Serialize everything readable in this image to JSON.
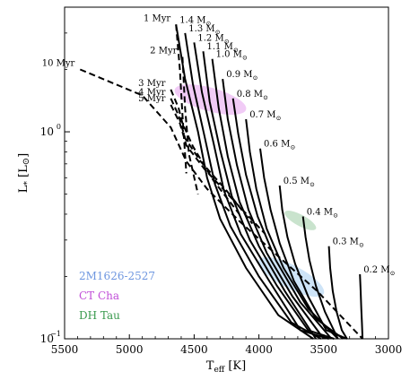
{
  "chart_data": {
    "type": "line",
    "xlabel": "T_eff [K]",
    "xlabel_main": "T",
    "xlabel_sub": "eff",
    "xlabel_unit": " [K]",
    "ylabel": "L_* [L_sun]",
    "ylabel_main": "L",
    "ylabel_sub": "*",
    "ylabel_unit": " [L",
    "ylabel_close": "]",
    "xlim": [
      5500,
      3000
    ],
    "ylim": [
      0.1,
      4.0
    ],
    "yscale": "log",
    "x_ticks": [
      5500,
      5000,
      4500,
      4000,
      3500,
      3000
    ],
    "x_tick_labels": [
      "5500",
      "5000",
      "4500",
      "4000",
      "3500",
      "3000"
    ],
    "y_major_ticks": [
      0.1,
      1
    ],
    "y_tick_labels": [
      "10",
      "10"
    ],
    "y_tick_exponents": [
      "−1",
      "0"
    ],
    "grid": false,
    "isochrones": [
      {
        "name": "1 Myr",
        "points": [
          [
            4640,
            3.3
          ],
          [
            4610,
            2.0
          ],
          [
            4590,
            1.2
          ],
          [
            4560,
            0.63
          ]
        ]
      },
      {
        "name": "2 Myr",
        "points": [
          [
            4590,
            2.3
          ],
          [
            4570,
            1.3
          ],
          [
            4540,
            0.78
          ],
          [
            4470,
            0.5
          ]
        ]
      },
      {
        "name": "3 Myr",
        "points": [
          [
            4680,
            1.6
          ],
          [
            4620,
            1.3
          ],
          [
            4590,
            1.1
          ],
          [
            4510,
            0.85
          ],
          [
            4350,
            0.58
          ],
          [
            4150,
            0.4
          ]
        ]
      },
      {
        "name": "4 Myr",
        "points": [
          [
            4680,
            1.45
          ],
          [
            4620,
            1.2
          ],
          [
            4570,
            0.93
          ],
          [
            4450,
            0.72
          ],
          [
            4250,
            0.52
          ],
          [
            4050,
            0.36
          ]
        ]
      },
      {
        "name": "5 Myr",
        "points": [
          [
            4680,
            1.35
          ],
          [
            4610,
            1.1
          ],
          [
            4560,
            0.86
          ],
          [
            4420,
            0.66
          ],
          [
            4200,
            0.47
          ],
          [
            3950,
            0.32
          ]
        ]
      },
      {
        "name": "10 Myr",
        "points": [
          [
            5380,
            2.0
          ],
          [
            4900,
            1.5
          ],
          [
            4680,
            1.05
          ],
          [
            4560,
            0.72
          ],
          [
            4400,
            0.53
          ],
          [
            4150,
            0.37
          ],
          [
            3850,
            0.25
          ],
          [
            3550,
            0.17
          ],
          [
            3200,
            0.1
          ]
        ]
      }
    ],
    "tracks": [
      {
        "mass": "1.4 M",
        "points": [
          [
            4640,
            3.3
          ],
          [
            4570,
            1.8
          ],
          [
            4470,
            1.0
          ],
          [
            4400,
            0.6
          ],
          [
            4300,
            0.38
          ],
          [
            4100,
            0.22
          ],
          [
            3850,
            0.13
          ],
          [
            3580,
            0.1
          ]
        ]
      },
      {
        "mass": "1.3 M",
        "points": [
          [
            4570,
            3.0
          ],
          [
            4510,
            1.7
          ],
          [
            4420,
            0.95
          ],
          [
            4340,
            0.56
          ],
          [
            4220,
            0.35
          ],
          [
            4000,
            0.2
          ],
          [
            3750,
            0.12
          ],
          [
            3520,
            0.1
          ]
        ]
      },
      {
        "mass": "1.2 M",
        "points": [
          [
            4500,
            2.7
          ],
          [
            4440,
            1.55
          ],
          [
            4350,
            0.88
          ],
          [
            4270,
            0.52
          ],
          [
            4140,
            0.32
          ],
          [
            3920,
            0.19
          ],
          [
            3680,
            0.11
          ],
          [
            3460,
            0.1
          ]
        ]
      },
      {
        "mass": "1.1 M",
        "points": [
          [
            4430,
            2.45
          ],
          [
            4380,
            1.4
          ],
          [
            4300,
            0.82
          ],
          [
            4210,
            0.49
          ],
          [
            4070,
            0.3
          ],
          [
            3860,
            0.18
          ],
          [
            3620,
            0.11
          ],
          [
            3420,
            0.1
          ]
        ]
      },
      {
        "mass": "1.0 M",
        "points": [
          [
            4360,
            2.25
          ],
          [
            4310,
            1.3
          ],
          [
            4240,
            0.76
          ],
          [
            4150,
            0.46
          ],
          [
            4000,
            0.28
          ],
          [
            3800,
            0.17
          ],
          [
            3560,
            0.1
          ]
        ]
      },
      {
        "mass": "0.9 M",
        "points": [
          [
            4280,
            1.8
          ],
          [
            4240,
            1.15
          ],
          [
            4170,
            0.69
          ],
          [
            4080,
            0.42
          ],
          [
            3940,
            0.26
          ],
          [
            3740,
            0.16
          ],
          [
            3500,
            0.1
          ]
        ]
      },
      {
        "mass": "0.8 M",
        "points": [
          [
            4200,
            1.45
          ],
          [
            4160,
            0.98
          ],
          [
            4100,
            0.62
          ],
          [
            4010,
            0.39
          ],
          [
            3870,
            0.24
          ],
          [
            3680,
            0.15
          ],
          [
            3440,
            0.1
          ]
        ]
      },
      {
        "mass": "0.7 M",
        "points": [
          [
            4100,
            1.15
          ],
          [
            4070,
            0.8
          ],
          [
            4020,
            0.53
          ],
          [
            3940,
            0.34
          ],
          [
            3810,
            0.22
          ],
          [
            3620,
            0.14
          ],
          [
            3390,
            0.1
          ]
        ]
      },
      {
        "mass": "0.6 M",
        "points": [
          [
            3990,
            0.83
          ],
          [
            3960,
            0.6
          ],
          [
            3910,
            0.42
          ],
          [
            3840,
            0.29
          ],
          [
            3730,
            0.19
          ],
          [
            3560,
            0.125
          ],
          [
            3350,
            0.1
          ]
        ]
      },
      {
        "mass": "0.5 M",
        "points": [
          [
            3840,
            0.55
          ],
          [
            3820,
            0.42
          ],
          [
            3780,
            0.31
          ],
          [
            3720,
            0.23
          ],
          [
            3620,
            0.16
          ],
          [
            3480,
            0.11
          ],
          [
            3320,
            0.1
          ]
        ]
      },
      {
        "mass": "0.4 M",
        "points": [
          [
            3660,
            0.39
          ],
          [
            3640,
            0.31
          ],
          [
            3610,
            0.24
          ],
          [
            3560,
            0.18
          ],
          [
            3490,
            0.135
          ],
          [
            3390,
            0.1
          ]
        ]
      },
      {
        "mass": "0.3 M",
        "points": [
          [
            3460,
            0.28
          ],
          [
            3450,
            0.22
          ],
          [
            3430,
            0.17
          ],
          [
            3400,
            0.135
          ],
          [
            3360,
            0.11
          ],
          [
            3320,
            0.1
          ]
        ]
      },
      {
        "mass": "0.2 M",
        "points": [
          [
            3220,
            0.205
          ],
          [
            3215,
            0.17
          ],
          [
            3210,
            0.14
          ],
          [
            3205,
            0.12
          ],
          [
            3200,
            0.1
          ]
        ]
      }
    ],
    "track_label_suffix": "⊙",
    "objects": [
      {
        "name": "2M1626-2527",
        "color": "#6f97e0",
        "fill": "#a6cdf0",
        "center": [
          3750,
          0.2
        ],
        "span_T": [
          4000,
          3500
        ],
        "span_L": [
          0.24,
          0.165
        ]
      },
      {
        "name": "CT Cha",
        "color": "#c04ed8",
        "fill": "#e6a0ee",
        "center": [
          4420,
          1.43
        ],
        "span_T": [
          4650,
          4100
        ],
        "span_L": [
          1.6,
          1.28
        ]
      },
      {
        "name": "DH Tau",
        "color": "#3a9a4e",
        "fill": "#9dcca4",
        "center": [
          3680,
          0.37
        ],
        "span_T": [
          3800,
          3560
        ],
        "span_L": [
          0.41,
          0.34
        ]
      }
    ]
  }
}
